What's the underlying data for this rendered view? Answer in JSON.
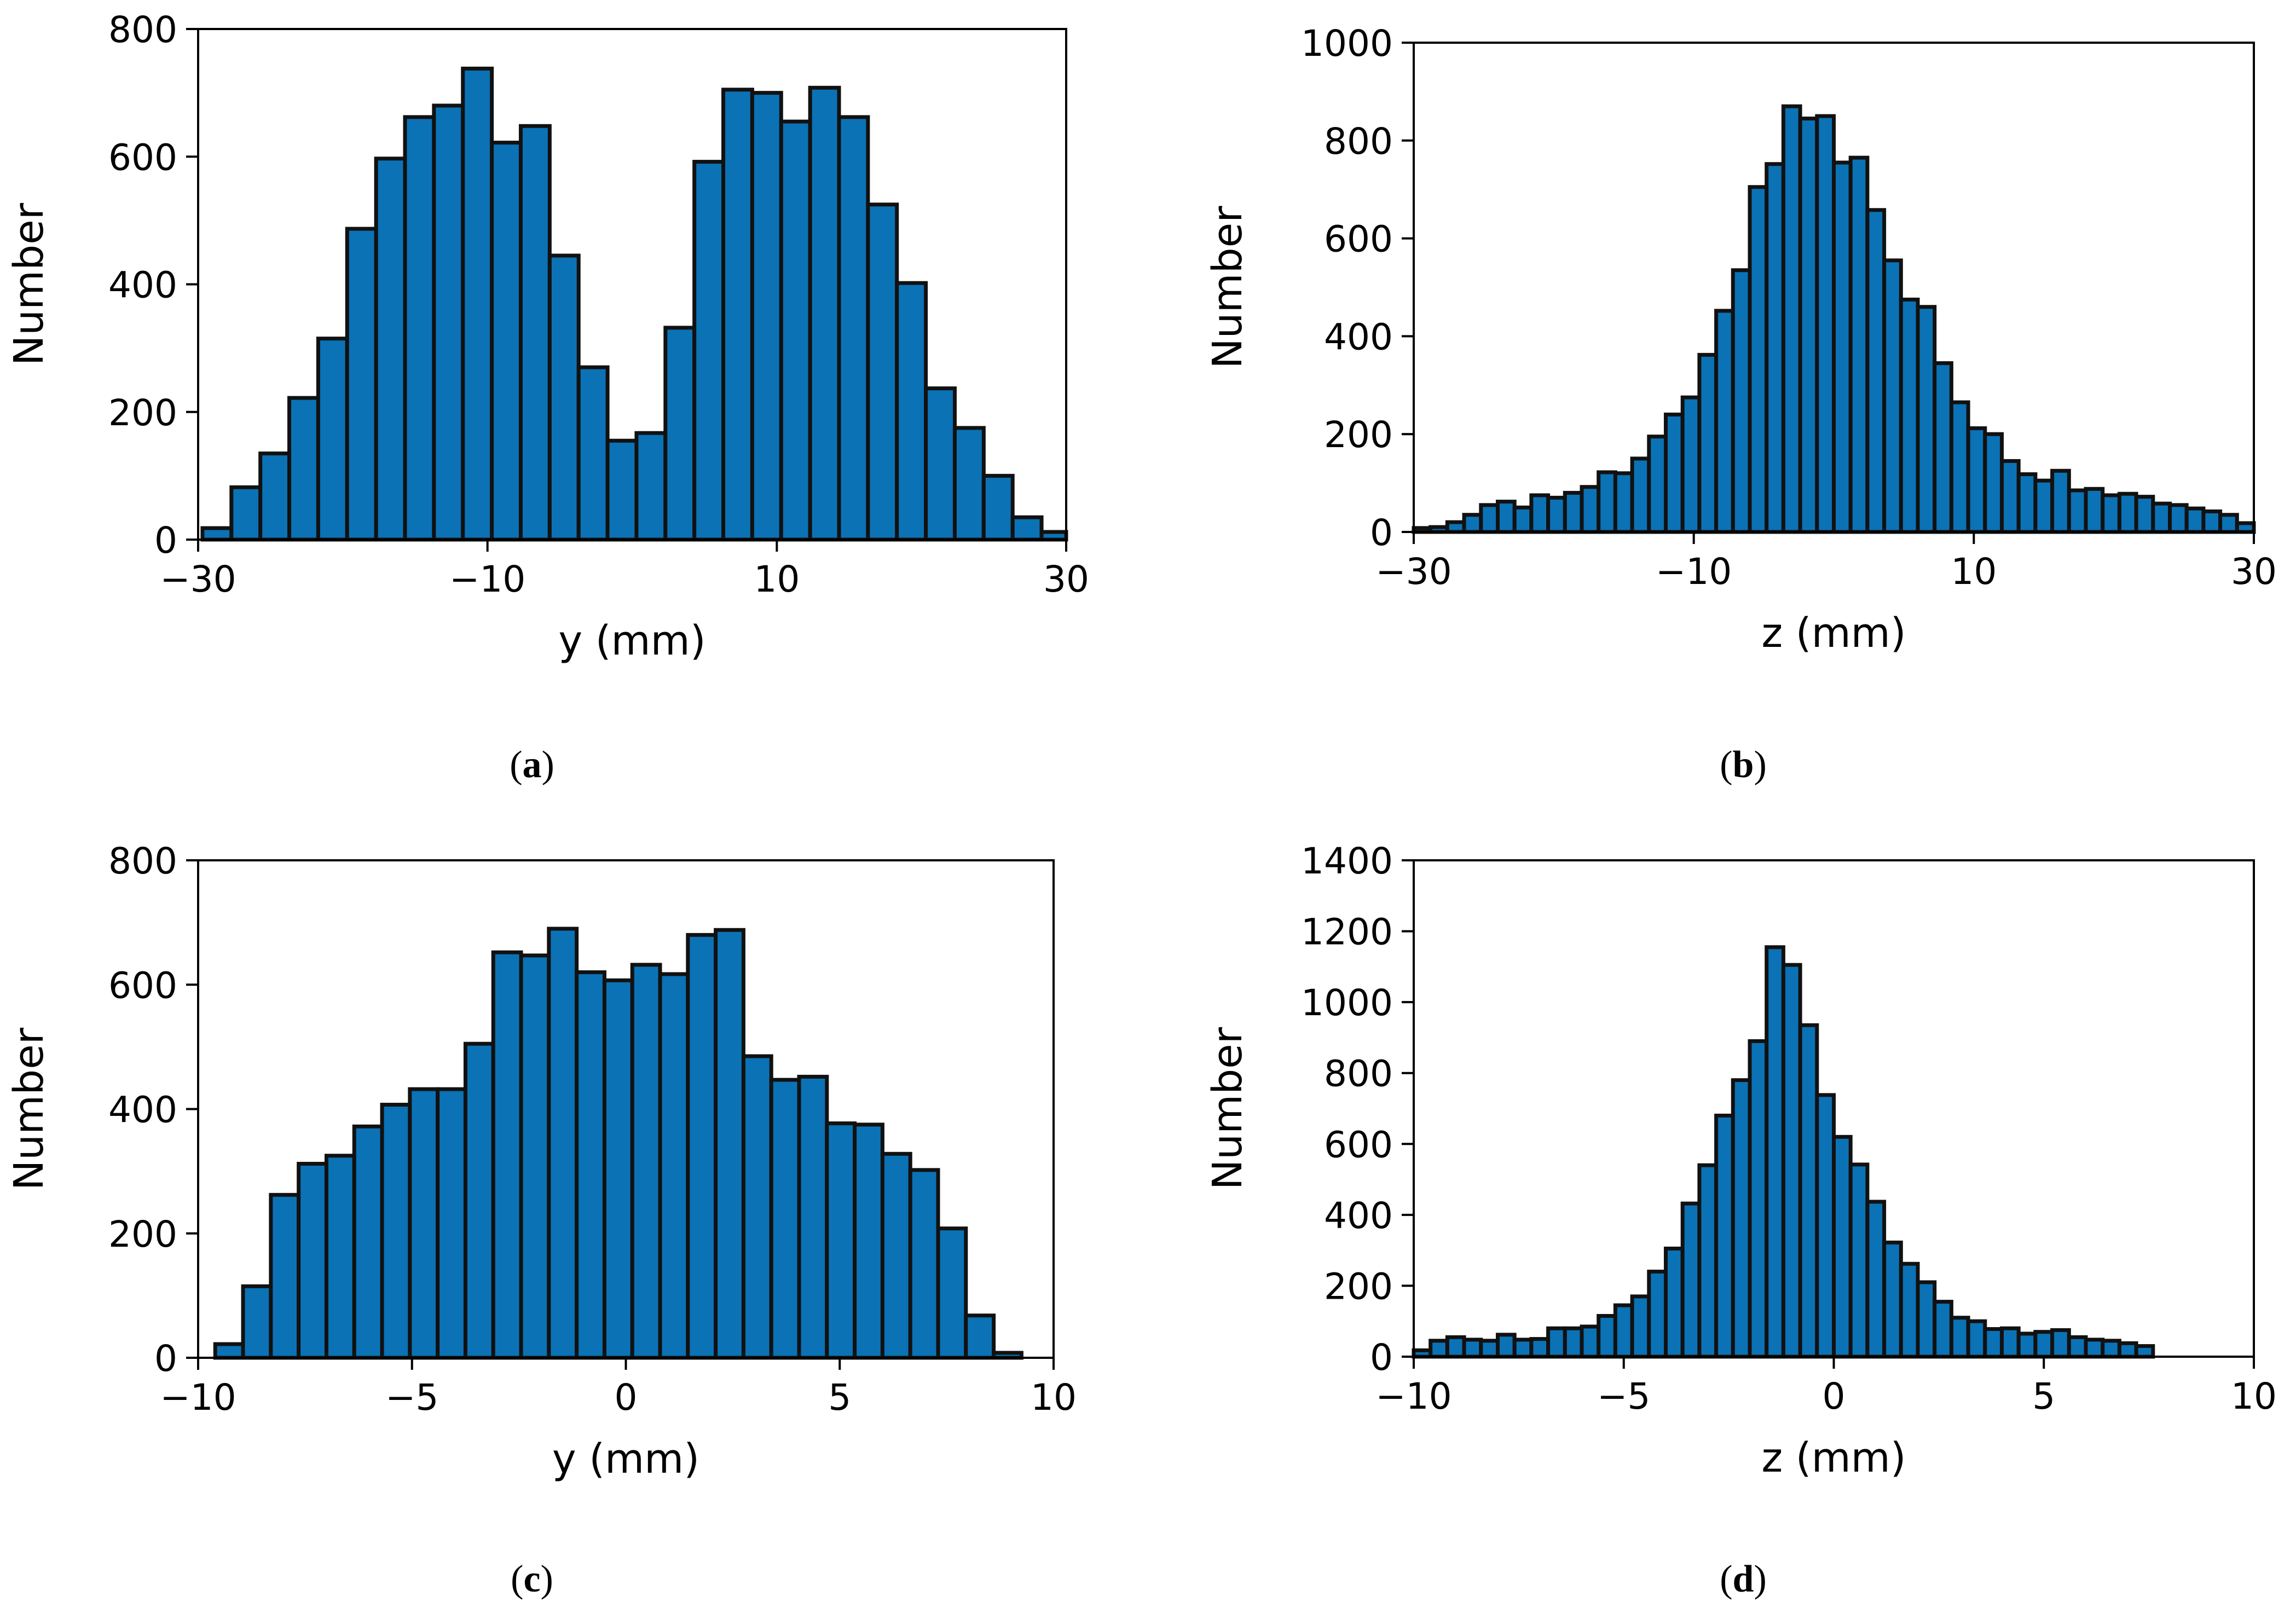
{
  "colors": {
    "bar_fill": "#0b72b5",
    "bar_edge": "#111111",
    "axis": "#000000"
  },
  "chart_data": [
    {
      "id": "a",
      "type": "bar",
      "caption": "a",
      "xlabel": "y (mm)",
      "ylabel": "Number",
      "xlim": [
        -30,
        30
      ],
      "ylim": [
        0,
        800
      ],
      "xticks": [
        -30,
        -10,
        10,
        30
      ],
      "xtick_labels": [
        "−30",
        "−10",
        "10",
        "30"
      ],
      "yticks": [
        0,
        200,
        400,
        600,
        800
      ],
      "ytick_labels": [
        "0",
        "200",
        "400",
        "600",
        "800"
      ],
      "bin_start": -29.7,
      "bin_width": 2,
      "values": [
        18,
        82,
        135,
        222,
        315,
        487,
        597,
        662,
        680,
        738,
        622,
        648,
        445,
        270,
        155,
        167,
        332,
        592,
        705,
        700,
        655,
        708,
        662,
        525,
        402,
        237,
        175,
        100,
        35,
        12
      ]
    },
    {
      "id": "b",
      "type": "bar",
      "caption": "b",
      "xlabel": "z (mm)",
      "ylabel": "Number",
      "xlim": [
        -30,
        30
      ],
      "ylim": [
        0,
        1000
      ],
      "xticks": [
        -30,
        -10,
        10,
        30
      ],
      "xtick_labels": [
        "−30",
        "−10",
        "10",
        "30"
      ],
      "yticks": [
        0,
        200,
        400,
        600,
        800,
        1000
      ],
      "ytick_labels": [
        "0",
        "200",
        "400",
        "600",
        "800",
        "1000"
      ],
      "bin_start": -30,
      "bin_width": 1.2,
      "values": [
        8,
        10,
        20,
        35,
        55,
        62,
        50,
        75,
        70,
        80,
        92,
        122,
        120,
        150,
        195,
        240,
        275,
        362,
        452,
        535,
        705,
        752,
        870,
        845,
        850,
        755,
        765,
        658,
        555,
        475,
        460,
        345,
        265,
        212,
        200,
        145,
        118,
        105,
        125,
        85,
        88,
        75,
        78,
        72,
        58,
        55,
        48,
        42,
        35,
        18,
        10
      ]
    },
    {
      "id": "c",
      "type": "bar",
      "caption": "c",
      "xlabel": "y (mm)",
      "ylabel": "Number",
      "xlim": [
        -10,
        10
      ],
      "ylim": [
        0,
        800
      ],
      "xticks": [
        -10,
        -5,
        0,
        5,
        10
      ],
      "xtick_labels": [
        "−10",
        "−5",
        "0",
        "5",
        "10"
      ],
      "yticks": [
        0,
        200,
        400,
        600,
        800
      ],
      "ytick_labels": [
        "0",
        "200",
        "400",
        "600",
        "800"
      ],
      "bin_start": -9.6,
      "bin_width": 0.65,
      "values": [
        22,
        115,
        262,
        312,
        325,
        372,
        407,
        432,
        432,
        505,
        652,
        647,
        690,
        620,
        607,
        632,
        617,
        680,
        688,
        485,
        447,
        452,
        377,
        375,
        328,
        302,
        208,
        68,
        8
      ]
    },
    {
      "id": "d",
      "type": "bar",
      "caption": "d",
      "xlabel": "z (mm)",
      "ylabel": "Number",
      "xlim": [
        -10,
        10
      ],
      "ylim": [
        0,
        1400
      ],
      "xticks": [
        -10,
        -5,
        0,
        5,
        10
      ],
      "xtick_labels": [
        "−10",
        "−5",
        "0",
        "5",
        "10"
      ],
      "yticks": [
        0,
        200,
        400,
        600,
        800,
        1000,
        1200,
        1400
      ],
      "ytick_labels": [
        "0",
        "200",
        "400",
        "600",
        "800",
        "1000",
        "1200",
        "1400"
      ],
      "bin_start": -10,
      "bin_width": 0.4,
      "values": [
        18,
        45,
        55,
        48,
        45,
        62,
        48,
        50,
        80,
        80,
        85,
        115,
        145,
        170,
        240,
        305,
        432,
        540,
        680,
        780,
        890,
        1155,
        1105,
        935,
        738,
        620,
        542,
        437,
        322,
        262,
        210,
        155,
        110,
        100,
        78,
        80,
        65,
        70,
        75,
        55,
        48,
        45,
        38,
        30
      ]
    }
  ]
}
